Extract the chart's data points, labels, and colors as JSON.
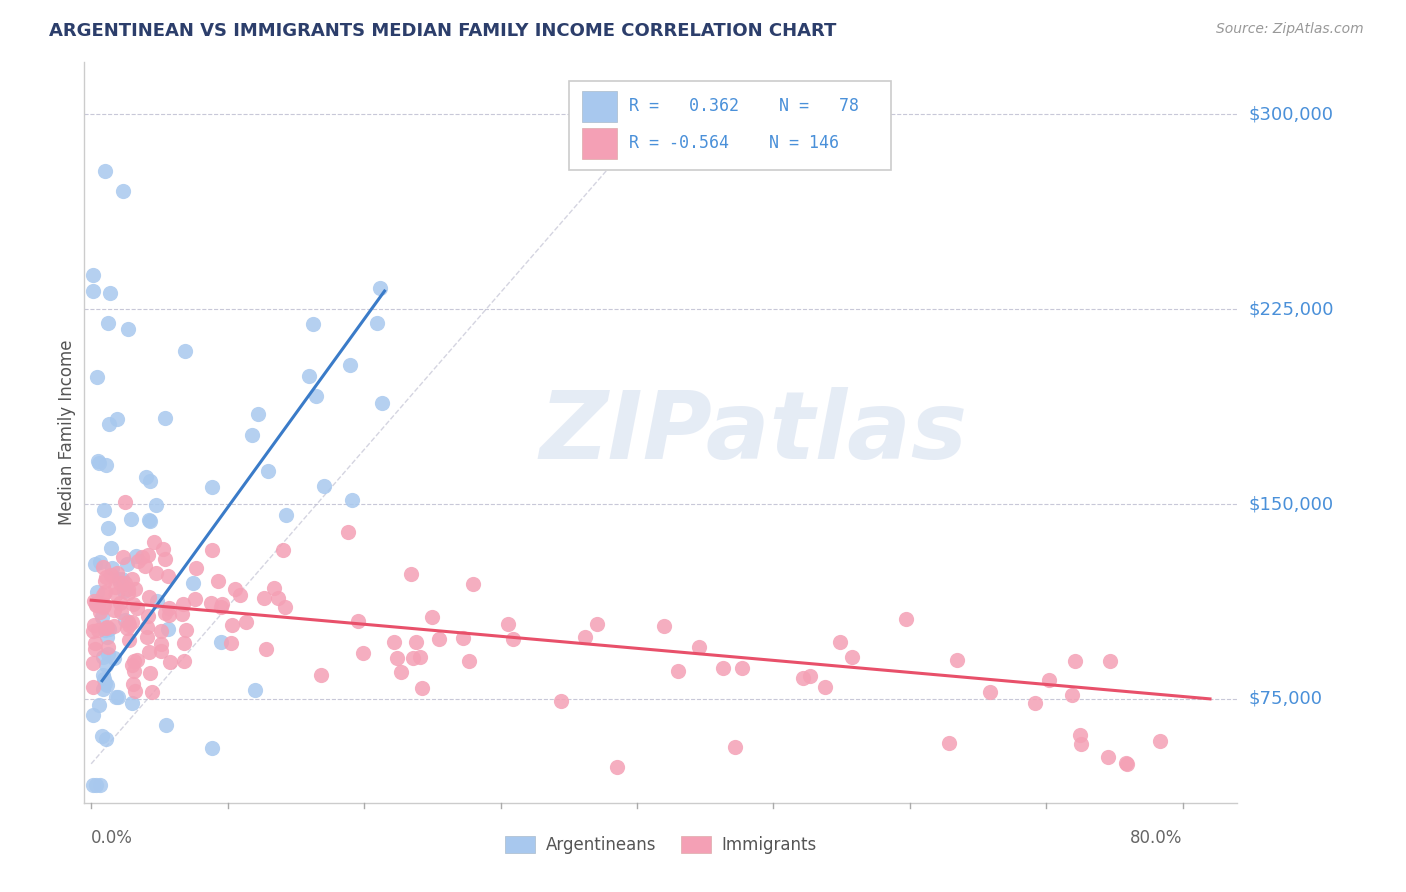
{
  "title": "ARGENTINEAN VS IMMIGRANTS MEDIAN FAMILY INCOME CORRELATION CHART",
  "source": "Source: ZipAtlas.com",
  "ylabel": "Median Family Income",
  "ytick_labels": [
    "$75,000",
    "$150,000",
    "$225,000",
    "$300,000"
  ],
  "ytick_values": [
    75000,
    150000,
    225000,
    300000
  ],
  "ymin": 35000,
  "ymax": 320000,
  "xmin": -0.005,
  "xmax": 0.84,
  "watermark_text": "ZIPatlas",
  "color_blue": "#A8C8EE",
  "color_pink": "#F4A0B5",
  "line_blue": "#3A7BC8",
  "line_pink": "#E8506A",
  "title_color": "#2C3E6B",
  "axis_label_color": "#4A90D9",
  "text_color_dark": "#222244",
  "source_color": "#999999",
  "legend_r_blue": "0.362",
  "legend_n_blue": "78",
  "legend_r_pink": "-0.564",
  "legend_n_pink": "146"
}
